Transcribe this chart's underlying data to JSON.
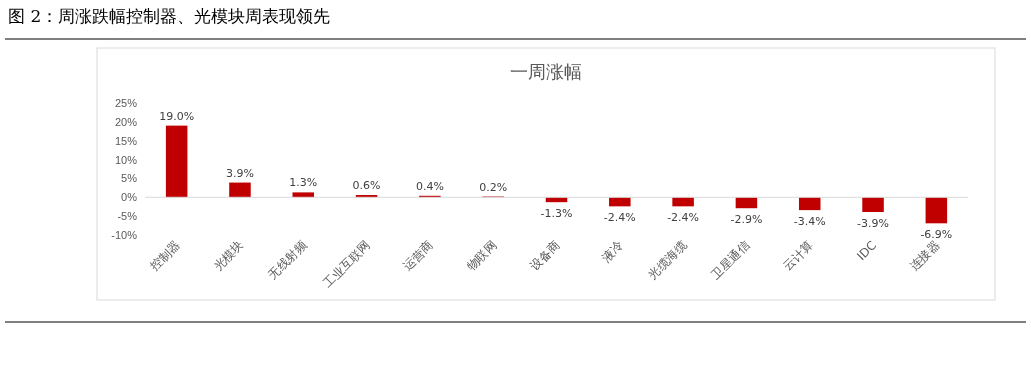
{
  "chart_data": {
    "type": "bar",
    "title": "一周涨幅",
    "annotations": [
      "图 2：周涨跌幅控制器、光模块周表现领先"
    ],
    "categories": [
      "控制器",
      "光模块",
      "无线射频",
      "工业互联网",
      "运营商",
      "物联网",
      "设备商",
      "液冷",
      "光缆海缆",
      "卫星通信",
      "云计算",
      "IDC",
      "连接器"
    ],
    "values": [
      19.0,
      3.9,
      1.3,
      0.6,
      0.4,
      0.2,
      -1.3,
      -2.4,
      -2.4,
      -2.9,
      -3.4,
      -3.9,
      -6.9
    ],
    "value_labels": [
      "19.0%",
      "3.9%",
      "1.3%",
      "0.6%",
      "0.4%",
      "0.2%",
      "-1.3%",
      "-2.4%",
      "-2.4%",
      "-2.9%",
      "-3.4%",
      "-3.9%",
      "-6.9%"
    ],
    "color": "#c00000",
    "ylim": [
      -10,
      25
    ],
    "yticks": [
      {
        "value": -10,
        "label": "-10%"
      },
      {
        "value": -5,
        "label": "-5%"
      },
      {
        "value": 0,
        "label": "0%"
      },
      {
        "value": 5,
        "label": "5%"
      },
      {
        "value": 10,
        "label": "10%"
      },
      {
        "value": 15,
        "label": "15%"
      },
      {
        "value": 20,
        "label": "20%"
      },
      {
        "value": 25,
        "label": "25%"
      }
    ]
  }
}
